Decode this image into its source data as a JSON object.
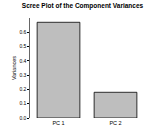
{
  "chart_data": {
    "type": "bar",
    "title": "Scree Plot of the Component Variances",
    "y_label": "Variances",
    "categories": [
      "PC 1",
      "PC 2"
    ],
    "values": [
      0.67,
      0.18
    ],
    "color": "#bebebe",
    "ylim": [
      0,
      0.7
    ],
    "yticks": [
      {
        "value": 0,
        "label": "0.0"
      },
      0.1,
      0.2,
      0.3,
      0.4,
      0.5,
      0.6
    ],
    "grid": false
  }
}
